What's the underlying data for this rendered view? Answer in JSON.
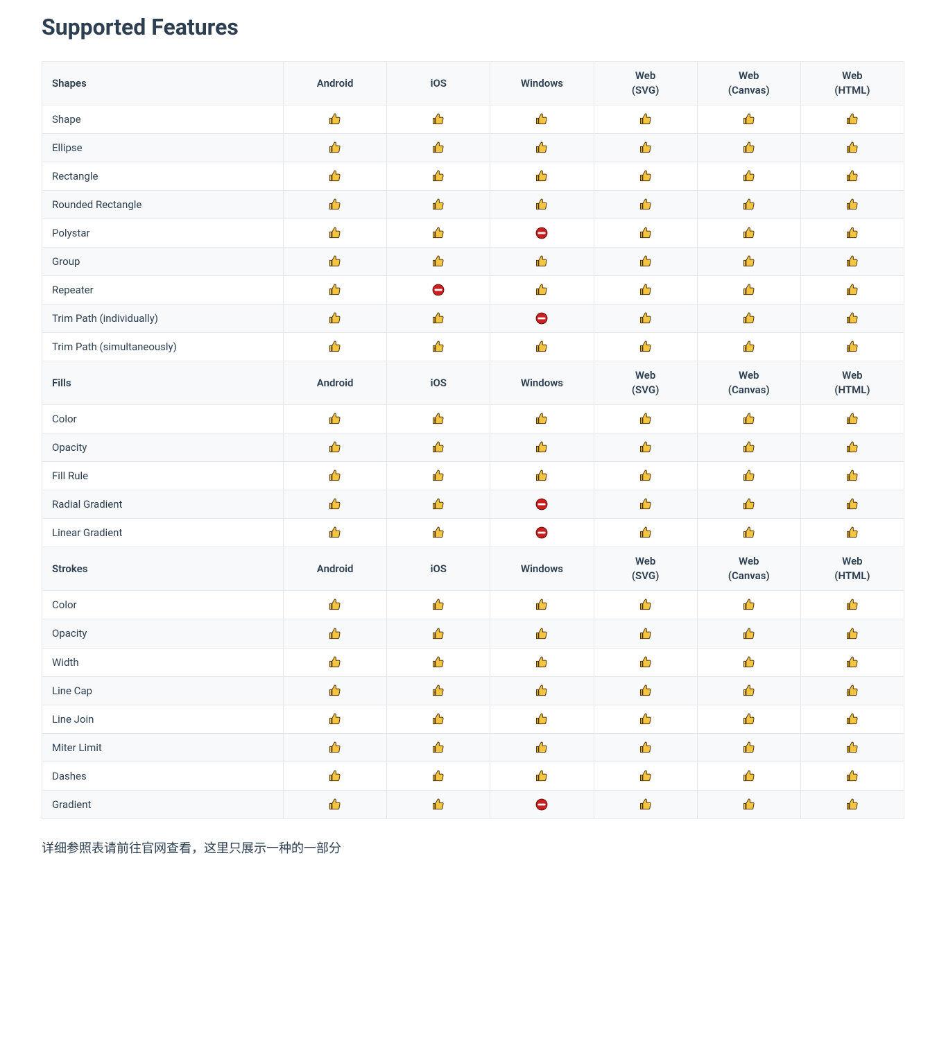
{
  "title": "Supported Features",
  "footnote": "详细参照表请前往官网查看，这里只展示一种的一部分",
  "icons": {
    "yes": "thumbs-up",
    "no": "no-entry"
  },
  "colors": {
    "thumbs_fill": "#f5c542",
    "thumbs_stroke": "#4a3510",
    "stop_fill": "#cc1f1f",
    "stop_bar": "#ffffff",
    "stop_stroke": "#5a0c0c",
    "border": "#e5e7eb",
    "header_bg": "#f8f9fa",
    "text": "#2c3e50"
  },
  "platforms": [
    "Android",
    "iOS",
    "Windows",
    "Web (SVG)",
    "Web (Canvas)",
    "Web (HTML)"
  ],
  "sections": [
    {
      "title": "Shapes",
      "rows": [
        {
          "name": "Shape",
          "cells": [
            "yes",
            "yes",
            "yes",
            "yes",
            "yes",
            "yes"
          ]
        },
        {
          "name": "Ellipse",
          "cells": [
            "yes",
            "yes",
            "yes",
            "yes",
            "yes",
            "yes"
          ]
        },
        {
          "name": "Rectangle",
          "cells": [
            "yes",
            "yes",
            "yes",
            "yes",
            "yes",
            "yes"
          ]
        },
        {
          "name": "Rounded Rectangle",
          "cells": [
            "yes",
            "yes",
            "yes",
            "yes",
            "yes",
            "yes"
          ]
        },
        {
          "name": "Polystar",
          "cells": [
            "yes",
            "yes",
            "no",
            "yes",
            "yes",
            "yes"
          ]
        },
        {
          "name": "Group",
          "cells": [
            "yes",
            "yes",
            "yes",
            "yes",
            "yes",
            "yes"
          ]
        },
        {
          "name": "Repeater",
          "cells": [
            "yes",
            "no",
            "yes",
            "yes",
            "yes",
            "yes"
          ]
        },
        {
          "name": "Trim Path (individually)",
          "cells": [
            "yes",
            "yes",
            "no",
            "yes",
            "yes",
            "yes"
          ]
        },
        {
          "name": "Trim Path (simultaneously)",
          "cells": [
            "yes",
            "yes",
            "yes",
            "yes",
            "yes",
            "yes"
          ]
        }
      ]
    },
    {
      "title": "Fills",
      "rows": [
        {
          "name": "Color",
          "cells": [
            "yes",
            "yes",
            "yes",
            "yes",
            "yes",
            "yes"
          ]
        },
        {
          "name": "Opacity",
          "cells": [
            "yes",
            "yes",
            "yes",
            "yes",
            "yes",
            "yes"
          ]
        },
        {
          "name": "Fill Rule",
          "cells": [
            "yes",
            "yes",
            "yes",
            "yes",
            "yes",
            "yes"
          ]
        },
        {
          "name": "Radial Gradient",
          "cells": [
            "yes",
            "yes",
            "no",
            "yes",
            "yes",
            "yes"
          ]
        },
        {
          "name": "Linear Gradient",
          "cells": [
            "yes",
            "yes",
            "no",
            "yes",
            "yes",
            "yes"
          ]
        }
      ]
    },
    {
      "title": "Strokes",
      "rows": [
        {
          "name": "Color",
          "cells": [
            "yes",
            "yes",
            "yes",
            "yes",
            "yes",
            "yes"
          ]
        },
        {
          "name": "Opacity",
          "cells": [
            "yes",
            "yes",
            "yes",
            "yes",
            "yes",
            "yes"
          ]
        },
        {
          "name": "Width",
          "cells": [
            "yes",
            "yes",
            "yes",
            "yes",
            "yes",
            "yes"
          ]
        },
        {
          "name": "Line Cap",
          "cells": [
            "yes",
            "yes",
            "yes",
            "yes",
            "yes",
            "yes"
          ]
        },
        {
          "name": "Line Join",
          "cells": [
            "yes",
            "yes",
            "yes",
            "yes",
            "yes",
            "yes"
          ]
        },
        {
          "name": "Miter Limit",
          "cells": [
            "yes",
            "yes",
            "yes",
            "yes",
            "yes",
            "yes"
          ]
        },
        {
          "name": "Dashes",
          "cells": [
            "yes",
            "yes",
            "yes",
            "yes",
            "yes",
            "yes"
          ]
        },
        {
          "name": "Gradient",
          "cells": [
            "yes",
            "yes",
            "no",
            "yes",
            "yes",
            "yes"
          ]
        }
      ]
    }
  ]
}
